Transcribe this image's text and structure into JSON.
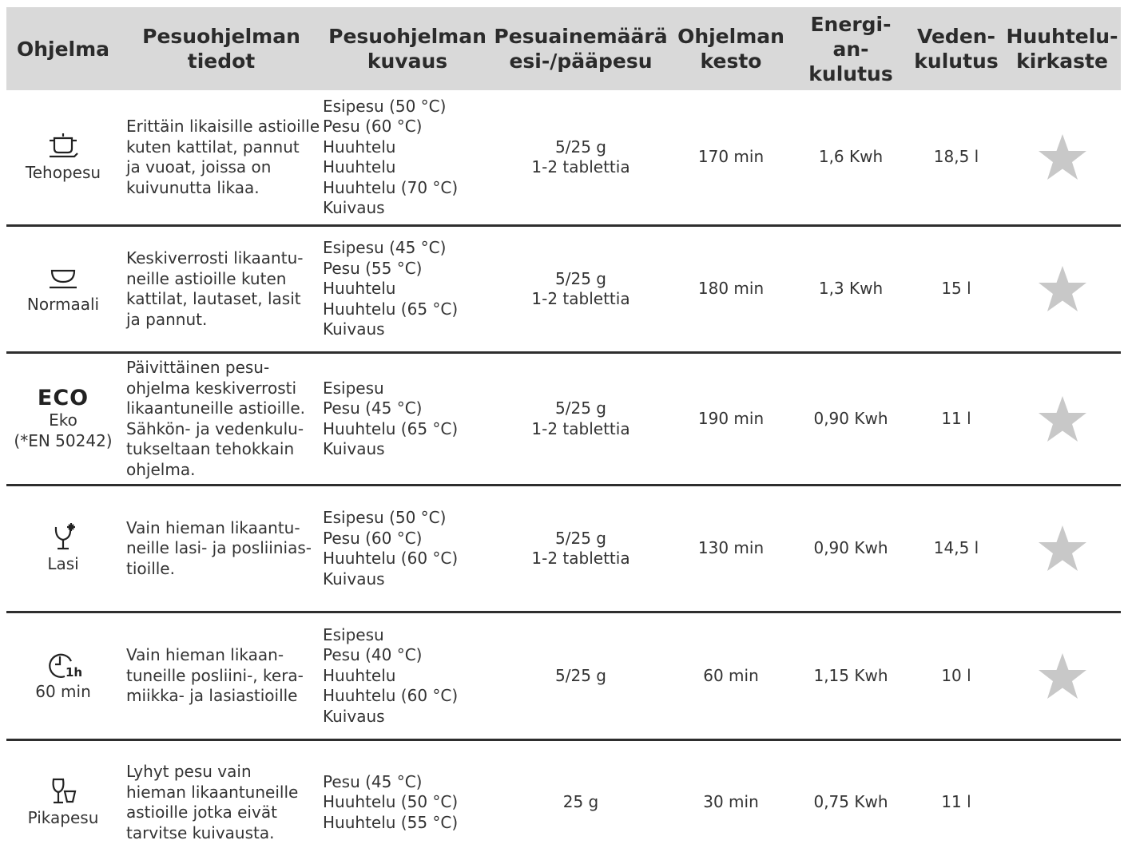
{
  "header": [
    "Ohjelma",
    "Pesuohjelman\ntiedot",
    "Pesuohjelman\nkuvaus",
    "Pesuainemäärä\nesi-/pääpesu",
    "Ohjelman\nkesto",
    "Energi-\nan-\nkulutus",
    "Veden-\nkulutus",
    "Huuhtelu-\nkirkaste"
  ],
  "rows": [
    {
      "icon": "pot-icon",
      "name": "Tehopesu",
      "tiedot": "Erittäin likaisille astioille\nkuten kattilat, pannut\nja vuoat, joissa on\nkuivunutta likaa.",
      "kuvaus": "Esipesu (50 °C)\nPesu (60 °C)\nHuuhtelu\nHuuhtelu\nHuuhtelu (70 °C)\nKuivaus",
      "pesuaine": "5/25 g\n1-2 tablettia",
      "kesto": "170 min",
      "energia": "1,6 Kwh",
      "vesi": "18,5 l",
      "kirkaste": true
    },
    {
      "icon": "bowl-icon",
      "name": "Normaali",
      "tiedot": "Keskiverrosti likaantu-\nneille astioille kuten\nkattilat, lautaset, lasit\nja pannut.",
      "kuvaus": "Esipesu (45 °C)\nPesu (55 °C)\nHuuhtelu\nHuuhtelu (65 °C)\nKuivaus",
      "pesuaine": "5/25 g\n1-2 tablettia",
      "kesto": "180 min",
      "energia": "1,3 Kwh",
      "vesi": "15 l",
      "kirkaste": true
    },
    {
      "icon": "eco-icon",
      "icon_text": "ECO",
      "name": "Eko\n(*EN 50242)",
      "tiedot": "Päivittäinen pesu-\nohjelma keskiverrosti\nlikaantuneille astioille.\nSähkön- ja vedenkulu-\ntukseltaan tehokkain\nohjelma.",
      "kuvaus": "Esipesu\nPesu (45 °C)\nHuuhtelu (65 °C)\nKuivaus",
      "pesuaine": "5/25 g\n1-2 tablettia",
      "kesto": "190 min",
      "energia": "0,90 Kwh",
      "vesi": "11 l",
      "kirkaste": true
    },
    {
      "icon": "glass-icon",
      "name": "Lasi",
      "tiedot": "Vain hieman likaantu-\nneille lasi- ja posliinias-\ntioille.",
      "kuvaus": "Esipesu (50 °C)\nPesu (60 °C)\nHuuhtelu (60 °C)\nKuivaus",
      "pesuaine": "5/25 g\n1-2 tablettia",
      "kesto": "130 min",
      "energia": "0,90 Kwh",
      "vesi": "14,5 l",
      "kirkaste": true
    },
    {
      "icon": "clock-1h-icon",
      "name": "60 min",
      "tiedot": "Vain hieman likaan-\ntuneille posliini-, kera-\nmiikka- ja lasiastioille",
      "kuvaus": "Esipesu\nPesu (40 °C)\nHuuhtelu\nHuuhtelu (60 °C)\nKuivaus",
      "pesuaine": "5/25 g",
      "kesto": "60 min",
      "energia": "1,15 Kwh",
      "vesi": "10 l",
      "kirkaste": true
    },
    {
      "icon": "glass-cup-icon",
      "name": "Pikapesu",
      "tiedot": "Lyhyt pesu vain\nhieman likaantuneille\nastioille jotka eivät\ntarvitse kuivausta.",
      "kuvaus": "Pesu (45 °C)\nHuuhtelu (50 °C)\nHuuhtelu (55 °C)",
      "pesuaine": "25 g",
      "kesto": "30 min",
      "energia": "0,75 Kwh",
      "vesi": "11 l",
      "kirkaste": false
    }
  ],
  "colors": {
    "header_bg": "#d9d9d9",
    "star": "#c8c8c8",
    "rule": "#2e2e2e"
  }
}
